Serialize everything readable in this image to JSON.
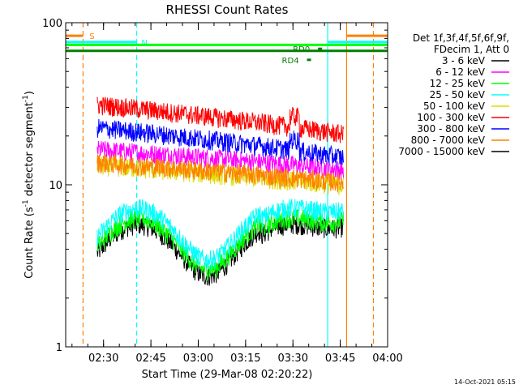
{
  "chart_data": {
    "type": "line",
    "title": "RHESSI Count Rates",
    "xlabel": "Start Time (29-Mar-08 02:20:22)",
    "ylabel": "Count Rate (s⁻¹ detector segment⁻¹)",
    "ylabel_main": "Count Rate (s",
    "ylabel_sup1": "-1",
    "ylabel_mid": " detector segment",
    "ylabel_sup2": "-1",
    "ylabel_end": ")",
    "yscale": "log",
    "ylim": [
      1,
      100
    ],
    "xlim": [
      -2,
      100
    ],
    "yticks": [
      {
        "v": 1,
        "label": "1"
      },
      {
        "v": 10,
        "label": "10"
      },
      {
        "v": 100,
        "label": "100"
      }
    ],
    "xticks": [
      {
        "v": 10,
        "label": "02:30"
      },
      {
        "v": 25,
        "label": "02:45"
      },
      {
        "v": 40,
        "label": "03:00"
      },
      {
        "v": 55,
        "label": "03:15"
      },
      {
        "v": 70,
        "label": "03:30"
      },
      {
        "v": 85,
        "label": "03:45"
      },
      {
        "v": 100,
        "label": "04:00"
      }
    ],
    "legend_position": "right",
    "legend_header": [
      "Det 1f,3f,4f,5f,6f,9f,",
      "FDecim 1, Att 0"
    ],
    "series": [
      {
        "name": "3 - 6 keV",
        "color": "#000000",
        "shape": "low",
        "level": 4.2
      },
      {
        "name": "6 - 12 keV",
        "color": "#ff00ff",
        "shape": "flat",
        "level": 15.0
      },
      {
        "name": "12 - 25 keV",
        "color": "#00ff00",
        "shape": "low",
        "level": 4.6
      },
      {
        "name": "25 - 50 keV",
        "color": "#00ffff",
        "shape": "low",
        "level": 5.3
      },
      {
        "name": "50 - 100 keV",
        "color": "#dddd00",
        "shape": "flat",
        "level": 12.0
      },
      {
        "name": "100 - 300 keV",
        "color": "#ff0000",
        "shape": "high",
        "level": 25.0
      },
      {
        "name": "300 - 800 keV",
        "color": "#0000ff",
        "shape": "high",
        "level": 18.0
      },
      {
        "name": "800 - 7000 keV",
        "color": "#ff8000",
        "shape": "flat",
        "level": 12.5
      },
      {
        "name": "7000 - 15000 keV",
        "color": "#000000",
        "shape": "none",
        "level": 0
      }
    ],
    "data_range": [
      8,
      86
    ],
    "vlines": [
      {
        "x": 3.5,
        "color": "#ff8000",
        "style": "dashed"
      },
      {
        "x": 20.5,
        "color": "#00ffff",
        "style": "dashed"
      },
      {
        "x": 81,
        "color": "#00ffff",
        "style": "solid"
      },
      {
        "x": 87,
        "color": "#ff8000",
        "style": "solid"
      },
      {
        "x": 95.5,
        "color": "#ff8000",
        "style": "dashed"
      }
    ],
    "flags": [
      {
        "label": "S",
        "color": "#ff8000",
        "y": 83,
        "x0": -2,
        "x1": 3.5,
        "label_x": 5.5
      },
      {
        "label": "N",
        "color": "#00ffff",
        "y": 76,
        "x0": -2,
        "x1": 20.5,
        "label_x": 22
      },
      {
        "label": "",
        "color": "#00ffff",
        "y": 76,
        "x0": 81,
        "x1": 100
      },
      {
        "label": "",
        "color": "#ff8000",
        "y": 83,
        "x0": 87,
        "x1": 100
      },
      {
        "label": "",
        "color": "#00ff00",
        "y": 73,
        "x0": -2,
        "x1": 100
      },
      {
        "label": "",
        "color": "#008000",
        "y": 67,
        "x0": -2,
        "x1": 100
      }
    ],
    "markers": [
      {
        "label": "RD4",
        "color": "#008000",
        "x": 67,
        "y": 59
      },
      {
        "label": "RD0",
        "color": "#008000",
        "x": 70.5,
        "y": 69
      }
    ],
    "footer": "14-Oct-2021 05:15"
  }
}
